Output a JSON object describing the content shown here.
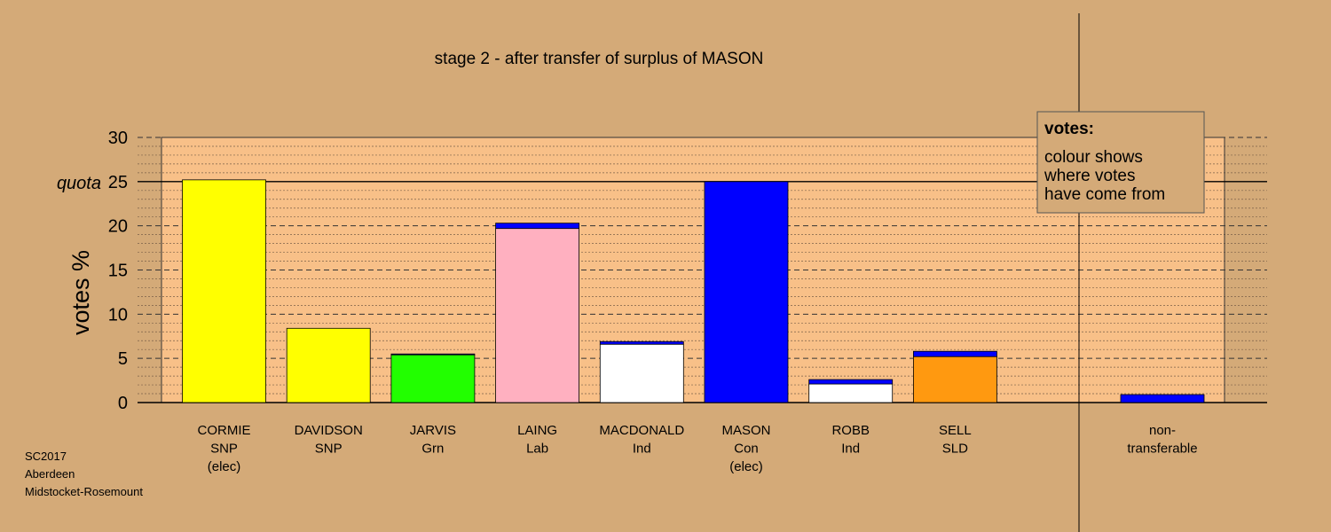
{
  "chart_data": {
    "type": "bar",
    "title": "stage 2 - after transfer of surplus of MASON",
    "ylabel": "votes %",
    "ylim": [
      0,
      30
    ],
    "yticks": [
      0,
      5,
      10,
      15,
      20,
      25,
      30
    ],
    "quota": {
      "value": 25,
      "label": "quota"
    },
    "grid": "dashed horizontal lines",
    "legend": {
      "position": "top-right",
      "title": "votes:",
      "lines": [
        "colour shows",
        "where votes",
        "have come from"
      ]
    },
    "colors": {
      "background": "#d4aa78",
      "plot_area": "#f8c088",
      "transfer": "#0000ff"
    },
    "candidates": [
      {
        "name": "CORMIE",
        "party": "SNP",
        "status": "(elec)",
        "color": "#ffff00",
        "segments": [
          {
            "value": 25.2,
            "color": "#ffff00"
          }
        ]
      },
      {
        "name": "DAVIDSON",
        "party": "SNP",
        "status": "",
        "color": "#ffff00",
        "segments": [
          {
            "value": 8.4,
            "color": "#ffff00"
          }
        ]
      },
      {
        "name": "JARVIS",
        "party": "Grn",
        "status": "",
        "color": "#22ff00",
        "segments": [
          {
            "value": 5.4,
            "color": "#22ff00"
          },
          {
            "value": 0.1,
            "color": "#0000ff"
          }
        ]
      },
      {
        "name": "LAING",
        "party": "Lab",
        "status": "",
        "color": "#ffb0c0",
        "segments": [
          {
            "value": 19.7,
            "color": "#ffb0c0"
          },
          {
            "value": 0.6,
            "color": "#0000ff"
          }
        ]
      },
      {
        "name": "MACDONALD",
        "party": "Ind",
        "status": "",
        "color": "#ffffff",
        "segments": [
          {
            "value": 6.6,
            "color": "#ffffff"
          },
          {
            "value": 0.3,
            "color": "#0000ff"
          }
        ]
      },
      {
        "name": "MASON",
        "party": "Con",
        "status": "(elec)",
        "color": "#0000ff",
        "segments": [
          {
            "value": 25.0,
            "color": "#0000ff"
          }
        ]
      },
      {
        "name": "ROBB",
        "party": "Ind",
        "status": "",
        "color": "#ffffff",
        "segments": [
          {
            "value": 2.1,
            "color": "#ffffff"
          },
          {
            "value": 0.5,
            "color": "#0000ff"
          }
        ]
      },
      {
        "name": "SELL",
        "party": "SLD",
        "status": "",
        "color": "#ff9910",
        "segments": [
          {
            "value": 5.2,
            "color": "#ff9910"
          },
          {
            "value": 0.6,
            "color": "#0000ff"
          }
        ]
      }
    ],
    "nontransferable": {
      "label_lines": [
        "non-",
        "transferable"
      ],
      "segments": [
        {
          "value": 0.9,
          "color": "#0000ff"
        }
      ]
    }
  },
  "footer": {
    "lines": [
      "SC2017",
      "Aberdeen",
      "Midstocket-Rosemount"
    ]
  }
}
